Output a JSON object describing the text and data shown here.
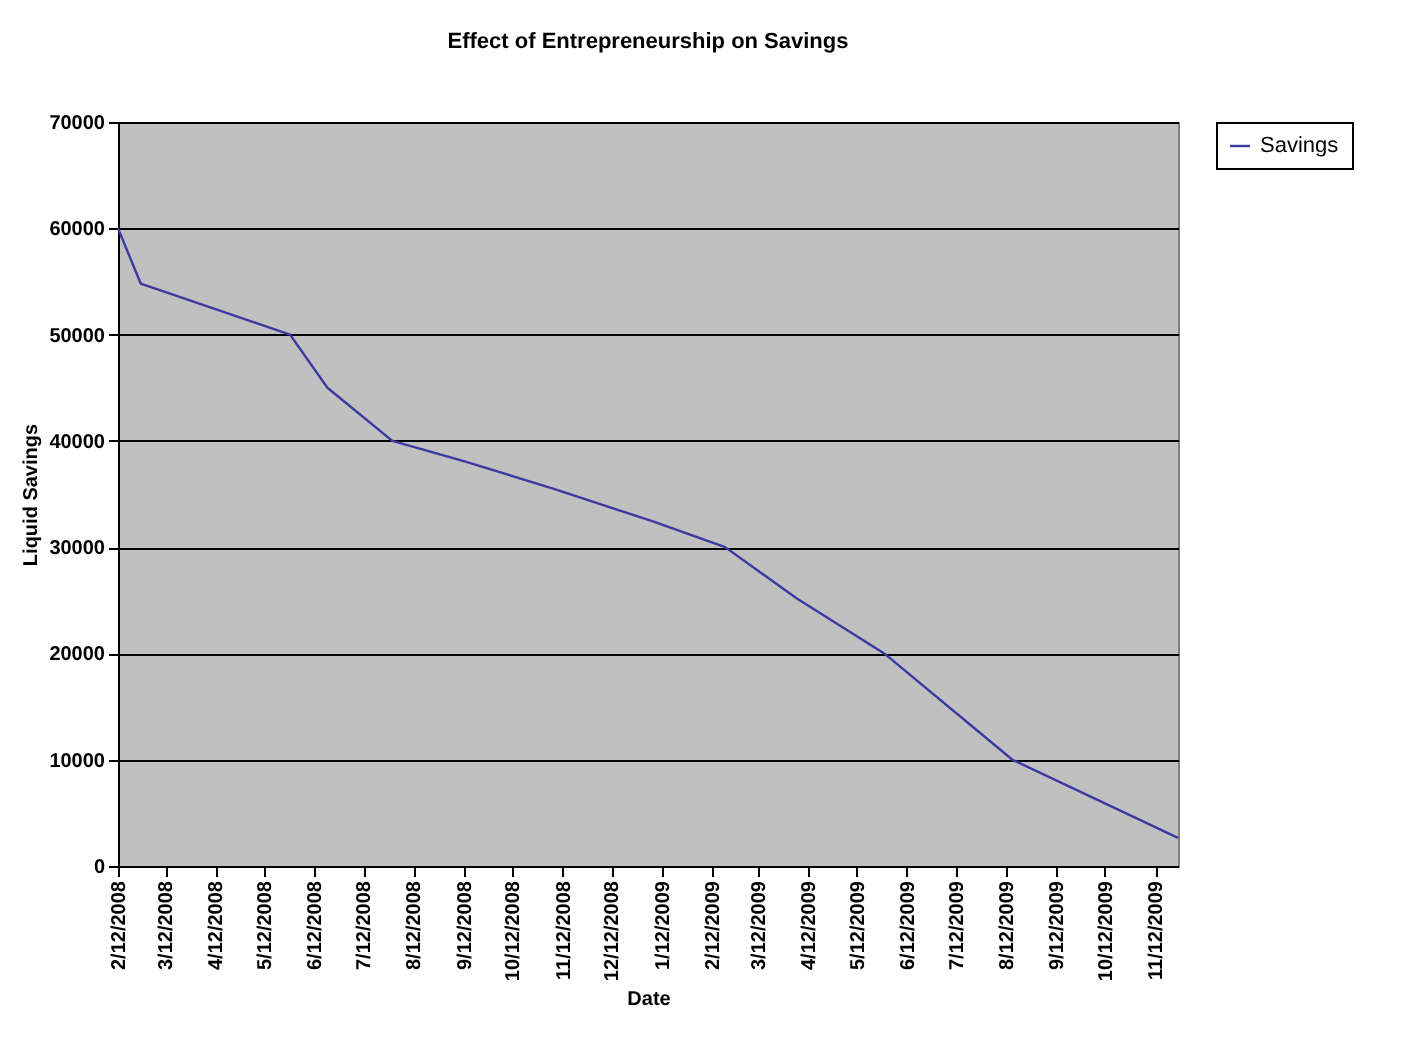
{
  "chart_data": {
    "type": "line",
    "title": "Effect of Entrepreneurship on Savings",
    "xlabel": "Date",
    "ylabel": "Liquid Savings",
    "x": [
      "2008-02-12",
      "2008-02-26",
      "2008-05-28",
      "2008-06-20",
      "2008-07-30",
      "2008-09-12",
      "2008-11-06",
      "2009-01-07",
      "2009-02-20",
      "2009-04-05",
      "2009-05-29",
      "2009-08-16",
      "2009-11-26"
    ],
    "series": [
      {
        "name": "Savings",
        "color": "#3a3aa0",
        "values": [
          60000,
          54800,
          50000,
          45000,
          40000,
          38100,
          35500,
          32400,
          30000,
          25200,
          20000,
          10000,
          2650
        ]
      }
    ],
    "xlim": [
      "2008-02-12",
      "2009-11-26"
    ],
    "xticks": [
      {
        "value": "2008-02-12",
        "label": "2/12/2008"
      },
      {
        "value": "2008-03-12",
        "label": "3/12/2008"
      },
      {
        "value": "2008-04-12",
        "label": "4/12/2008"
      },
      {
        "value": "2008-05-12",
        "label": "5/12/2008"
      },
      {
        "value": "2008-06-12",
        "label": "6/12/2008"
      },
      {
        "value": "2008-07-12",
        "label": "7/12/2008"
      },
      {
        "value": "2008-08-12",
        "label": "8/12/2008"
      },
      {
        "value": "2008-09-12",
        "label": "9/12/2008"
      },
      {
        "value": "2008-10-12",
        "label": "10/12/2008"
      },
      {
        "value": "2008-11-12",
        "label": "11/12/2008"
      },
      {
        "value": "2008-12-12",
        "label": "12/12/2008"
      },
      {
        "value": "2009-01-12",
        "label": "1/12/2009"
      },
      {
        "value": "2009-02-12",
        "label": "2/12/2009"
      },
      {
        "value": "2009-03-12",
        "label": "3/12/2009"
      },
      {
        "value": "2009-04-12",
        "label": "4/12/2009"
      },
      {
        "value": "2009-05-12",
        "label": "5/12/2009"
      },
      {
        "value": "2009-06-12",
        "label": "6/12/2009"
      },
      {
        "value": "2009-07-12",
        "label": "7/12/2009"
      },
      {
        "value": "2009-08-12",
        "label": "8/12/2009"
      },
      {
        "value": "2009-09-12",
        "label": "9/12/2009"
      },
      {
        "value": "2009-10-12",
        "label": "10/12/2009"
      },
      {
        "value": "2009-11-12",
        "label": "11/12/2009"
      }
    ],
    "ylim": [
      0,
      70000
    ],
    "yticks": [
      0,
      10000,
      20000,
      30000,
      40000,
      50000,
      60000,
      70000
    ],
    "grid": "y",
    "legend": "right",
    "marker": "none",
    "line_style": "solid"
  }
}
